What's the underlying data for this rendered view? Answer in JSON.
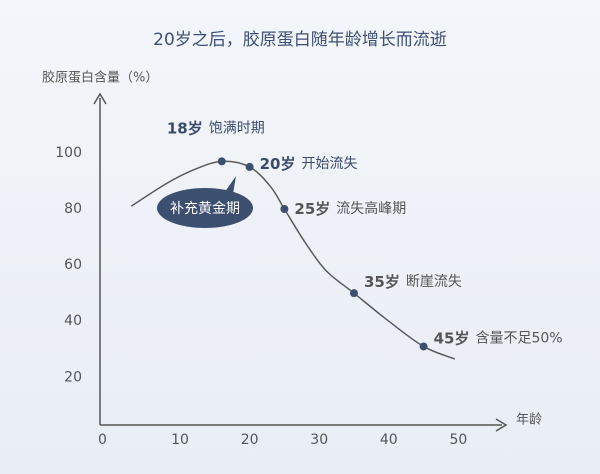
{
  "chart_data": {
    "type": "line",
    "title": "20岁之后，胶原蛋白随年龄增长而流逝",
    "y_label": "胶原蛋白含量（%）",
    "x_label": "年龄",
    "x": [
      3,
      8,
      12,
      16,
      20,
      23,
      25,
      28,
      31,
      35,
      40,
      45,
      49.5
    ],
    "series": [
      {
        "color": "#5a5a5a",
        "values": [
          81,
          89,
          94,
          97,
          95,
          88,
          80,
          68,
          58,
          50,
          40,
          31,
          26.5
        ]
      }
    ],
    "markers": {
      "color": "#3d4f6e",
      "x": [
        16,
        20,
        25,
        35,
        45
      ],
      "values": [
        97,
        95,
        80,
        50,
        31
      ]
    },
    "annotations": [
      {
        "age": "18岁",
        "text": "饱满时期",
        "color": "#3a4a6b"
      },
      {
        "age": "20岁",
        "text": "开始流失",
        "color": "#3a4a6b"
      },
      {
        "age": "25岁",
        "text": "流失高峰期",
        "color": "#555555"
      },
      {
        "age": "35岁",
        "text": "断崖流失",
        "color": "#555555"
      },
      {
        "age": "45岁",
        "text": "含量不足50%",
        "color": "#555555"
      }
    ],
    "callout": "补充黄金期",
    "xlim": [
      -1.5,
      56.7
    ],
    "ylim": [
      3,
      121
    ],
    "xticks": [
      0,
      10,
      20,
      30,
      40,
      50
    ],
    "yticks": [
      20,
      40,
      60,
      80,
      100
    ]
  }
}
